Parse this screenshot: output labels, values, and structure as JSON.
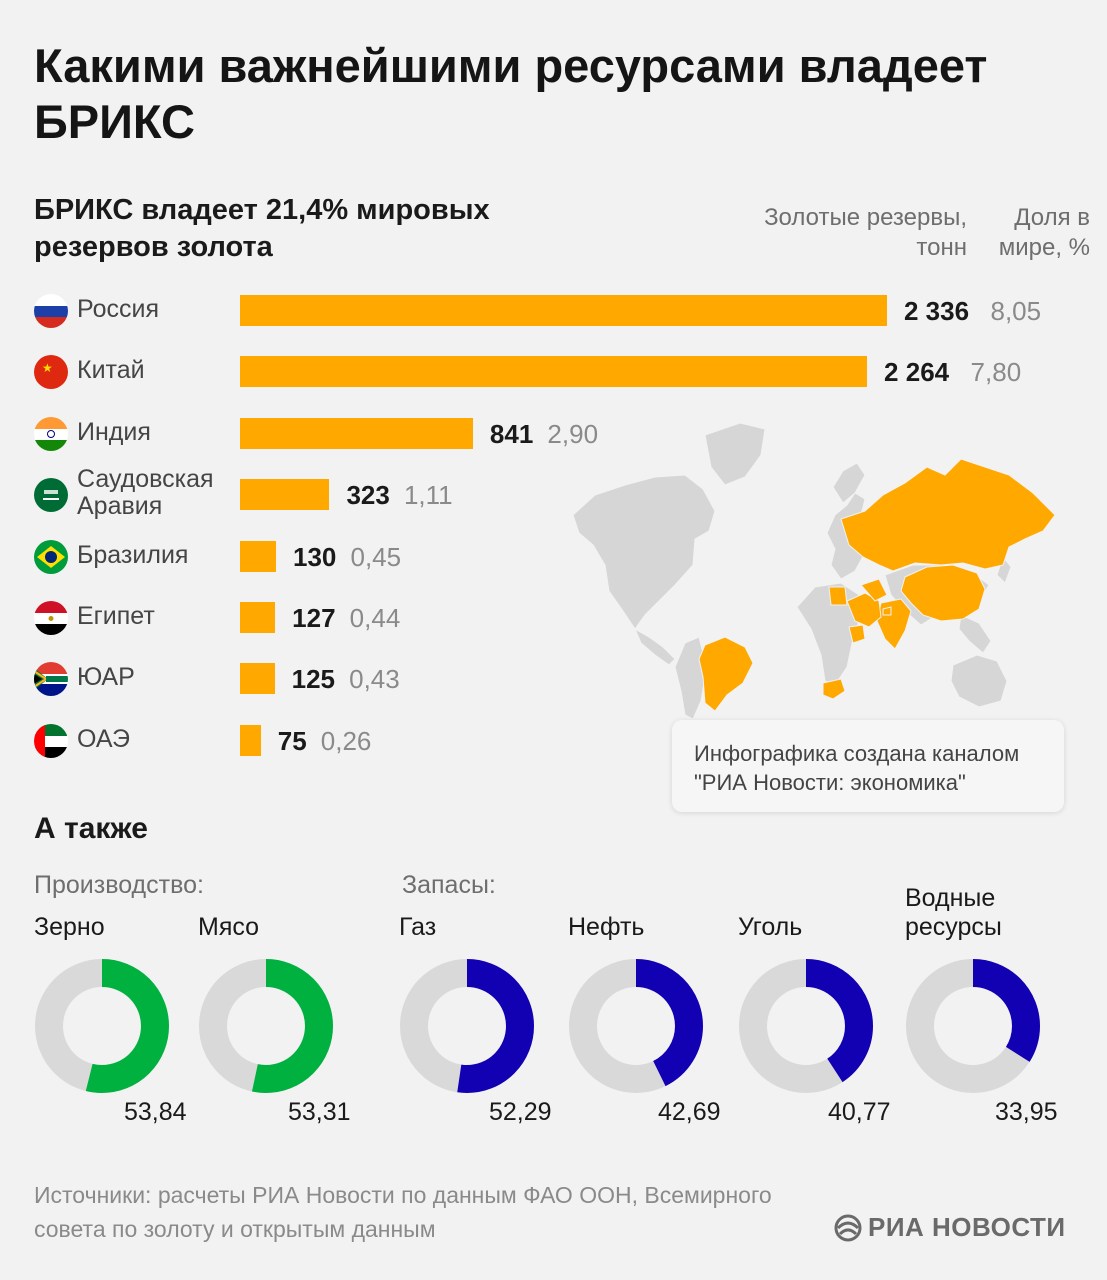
{
  "title": "Какими важнейшими ресурсами владеет БРИКС",
  "gold": {
    "subtitle": "БРИКС владеет 21,4% мировых резервов золота",
    "col_reserves": "Золотые резервы, тонн",
    "col_share": "Доля в мире, %",
    "note": "Инфографика создана каналом \"РИА Новости: экономика\""
  },
  "also": {
    "title": "А также",
    "production_label": "Производство:",
    "reserves_label": "Запасы:"
  },
  "source": "Источники: расчеты РИА Новости по данным ФАО ООН, Всемирного совета по золоту и открытым данным",
  "logo": "РИА НОВОСТИ",
  "colors": {
    "bar": "#ffa800",
    "production": "#00b140",
    "reserves": "#1200b3",
    "ring_bg": "#d9d9d9",
    "map_land": "#d6d6d6",
    "map_brics": "#ffa800"
  },
  "chart_data": [
    {
      "type": "bar",
      "orientation": "horizontal",
      "categories": [
        "Россия",
        "Китай",
        "Индия",
        "Саудовская Аравия",
        "Бразилия",
        "Египет",
        "ЮАР",
        "ОАЭ"
      ],
      "series": [
        {
          "name": "Золотые резервы, тонн",
          "values": [
            2336,
            2264,
            841,
            323,
            130,
            127,
            125,
            75
          ],
          "labels": [
            "2 336",
            "2 264",
            "841",
            "323",
            "130",
            "127",
            "125",
            "75"
          ]
        },
        {
          "name": "Доля в мире, %",
          "values": [
            8.05,
            7.8,
            2.9,
            1.11,
            0.45,
            0.44,
            0.43,
            0.26
          ],
          "labels": [
            "8,05",
            "7,80",
            "2,90",
            "1,11",
            "0,45",
            "0,44",
            "0,43",
            "0,26"
          ]
        }
      ],
      "flags": [
        "russia-flag",
        "china-flag",
        "india-flag",
        "saudi-arabia-flag",
        "brazil-flag",
        "egypt-flag",
        "south-africa-flag",
        "uae-flag"
      ]
    },
    {
      "type": "pie",
      "style": "donut",
      "categories": [
        "Зерно",
        "Мясо",
        "Газ",
        "Нефть",
        "Уголь",
        "Водные ресурсы"
      ],
      "groups": [
        "production",
        "production",
        "reserves",
        "reserves",
        "reserves",
        "reserves"
      ],
      "values": [
        53.84,
        53.31,
        52.29,
        42.69,
        40.77,
        33.95
      ],
      "labels": [
        "53,84",
        "53,31",
        "52,29",
        "42,69",
        "40,77",
        "33,95"
      ],
      "max": 100
    }
  ]
}
